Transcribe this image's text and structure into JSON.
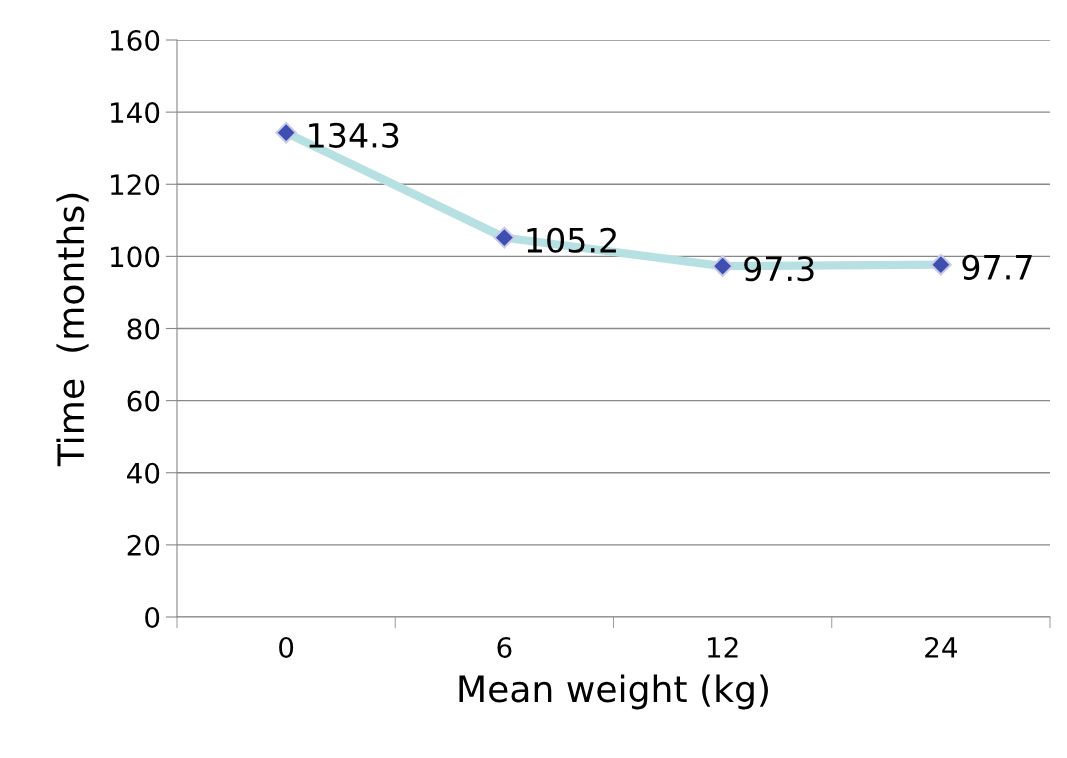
{
  "chart_data": {
    "type": "line",
    "xlabel": "Mean weight (kg)",
    "ylabel": "Time  (months)",
    "categories": [
      "0",
      "6",
      "12",
      "24"
    ],
    "series": [
      {
        "color": "#b7e0e3",
        "colors": [
          "#3f4fb0",
          "#3f4fb0",
          "#3f4fb0",
          "#3f4fb0"
        ],
        "values": [
          134.3,
          105.2,
          97.3,
          97.7
        ]
      }
    ],
    "ylim": [
      0,
      160
    ],
    "yticks": [
      0,
      20,
      40,
      60,
      80,
      100,
      120,
      140,
      160
    ],
    "grid": "y",
    "marker": "diamond",
    "line_style": "solid",
    "data_labels": true,
    "legend": false
  }
}
